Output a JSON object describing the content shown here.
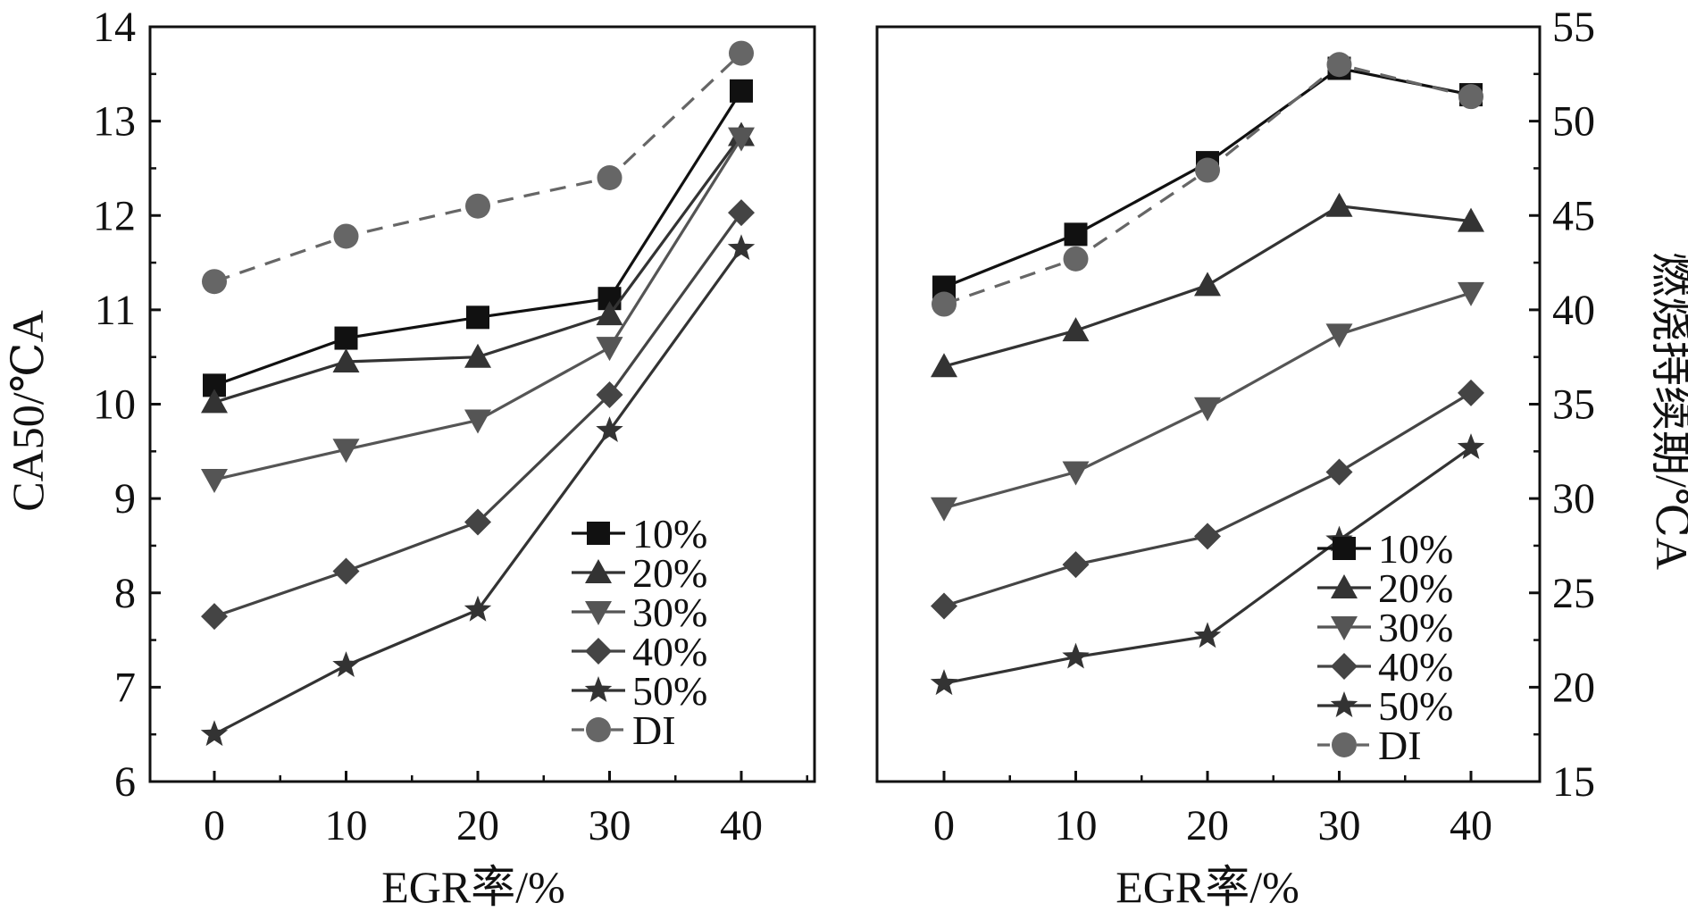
{
  "chart_data": [
    {
      "type": "line",
      "panel": "left",
      "ylabel": "CA50/℃A",
      "xlabel": "EGR率/%",
      "x": [
        0,
        10,
        20,
        30,
        40
      ],
      "xticks": [
        "0",
        "10",
        "20",
        "30",
        "40"
      ],
      "ylim": [
        6,
        14
      ],
      "yticks": [
        "6",
        "7",
        "8",
        "9",
        "10",
        "11",
        "12",
        "13",
        "14"
      ],
      "legend_position": "bottom-right",
      "series": [
        {
          "name": "10%",
          "marker": "square",
          "color": "#111111",
          "dashed": false,
          "values": [
            10.2,
            10.7,
            10.92,
            11.12,
            13.32
          ]
        },
        {
          "name": "20%",
          "marker": "triangle-up",
          "color": "#333333",
          "dashed": false,
          "values": [
            10.02,
            10.45,
            10.5,
            10.95,
            12.85
          ]
        },
        {
          "name": "30%",
          "marker": "triangle-down",
          "color": "#555555",
          "dashed": false,
          "values": [
            9.2,
            9.52,
            9.83,
            10.6,
            12.82
          ]
        },
        {
          "name": "40%",
          "marker": "diamond",
          "color": "#444444",
          "dashed": false,
          "values": [
            7.75,
            8.23,
            8.75,
            10.1,
            12.03
          ]
        },
        {
          "name": "50%",
          "marker": "star",
          "color": "#333333",
          "dashed": false,
          "values": [
            6.5,
            7.23,
            7.82,
            9.72,
            11.65
          ]
        },
        {
          "name": "DI",
          "marker": "circle",
          "color": "#666666",
          "dashed": true,
          "values": [
            11.3,
            11.78,
            12.1,
            12.4,
            13.72
          ]
        }
      ]
    },
    {
      "type": "line",
      "panel": "right",
      "ylabel": "燃烧持续期/℃A",
      "xlabel": "EGR率/%",
      "x": [
        0,
        10,
        20,
        30,
        40
      ],
      "xticks": [
        "0",
        "10",
        "20",
        "30",
        "40"
      ],
      "ylim": [
        15,
        55
      ],
      "yticks": [
        "15",
        "20",
        "25",
        "30",
        "35",
        "40",
        "45",
        "50",
        "55"
      ],
      "legend_position": "bottom-right",
      "series": [
        {
          "name": "10%",
          "marker": "square",
          "color": "#111111",
          "dashed": false,
          "values": [
            41.2,
            44.0,
            47.8,
            52.8,
            51.4
          ]
        },
        {
          "name": "20%",
          "marker": "triangle-up",
          "color": "#333333",
          "dashed": false,
          "values": [
            37.0,
            38.9,
            41.3,
            45.5,
            44.7
          ]
        },
        {
          "name": "30%",
          "marker": "triangle-down",
          "color": "#555555",
          "dashed": false,
          "values": [
            29.5,
            31.4,
            34.8,
            38.7,
            40.9
          ]
        },
        {
          "name": "40%",
          "marker": "diamond",
          "color": "#444444",
          "dashed": false,
          "values": [
            24.3,
            26.5,
            28.0,
            31.4,
            35.6
          ]
        },
        {
          "name": "50%",
          "marker": "star",
          "color": "#333333",
          "dashed": false,
          "values": [
            20.2,
            21.6,
            22.7,
            27.8,
            32.7
          ]
        },
        {
          "name": "DI",
          "marker": "circle",
          "color": "#666666",
          "dashed": true,
          "values": [
            40.3,
            42.7,
            47.4,
            53.0,
            51.3
          ]
        }
      ]
    }
  ]
}
